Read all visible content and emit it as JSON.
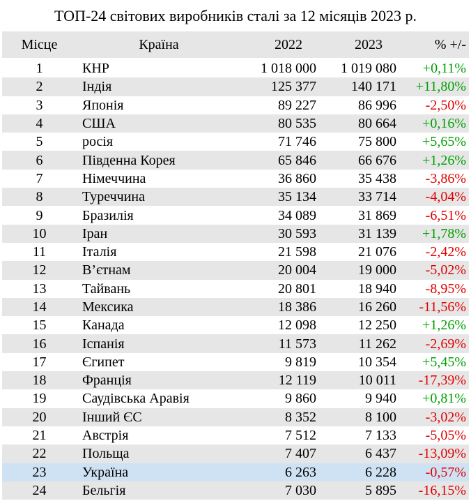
{
  "title": "ТОП-24 світових виробників сталі за 12 місяців 2023 р.",
  "headers": {
    "rank": "Місце",
    "country": "Країна",
    "y2022": "2022",
    "y2023": "2023",
    "change": "% +/-"
  },
  "colors": {
    "positive": "#00a000",
    "negative": "#e00000",
    "stripe": "#e6e6e6",
    "highlight": "#cfe2f3"
  },
  "rows": [
    {
      "rank": "1",
      "country": "КНР",
      "y2022": "1 018 000",
      "y2023": "1 019 080",
      "change": "+0,11%"
    },
    {
      "rank": "2",
      "country": "Індія",
      "y2022": "125 377",
      "y2023": "140 171",
      "change": "+11,80%"
    },
    {
      "rank": "3",
      "country": "Японія",
      "y2022": "89 227",
      "y2023": "86 996",
      "change": "-2,50%"
    },
    {
      "rank": "4",
      "country": "США",
      "y2022": "80 535",
      "y2023": "80 664",
      "change": "+0,16%"
    },
    {
      "rank": "5",
      "country": "росія",
      "y2022": "71 746",
      "y2023": "75 800",
      "change": "+5,65%"
    },
    {
      "rank": "6",
      "country": "Південна Корея",
      "y2022": "65 846",
      "y2023": "66 676",
      "change": "+1,26%"
    },
    {
      "rank": "7",
      "country": "Німеччина",
      "y2022": "36 860",
      "y2023": "35 438",
      "change": "-3,86%"
    },
    {
      "rank": "8",
      "country": "Туреччина",
      "y2022": "35 134",
      "y2023": "33 714",
      "change": "-4,04%"
    },
    {
      "rank": "9",
      "country": "Бразилія",
      "y2022": "34 089",
      "y2023": "31 869",
      "change": "-6,51%"
    },
    {
      "rank": "10",
      "country": "Іран",
      "y2022": "30 593",
      "y2023": "31 139",
      "change": "+1,78%"
    },
    {
      "rank": "11",
      "country": "Італія",
      "y2022": "21 598",
      "y2023": "21 076",
      "change": "-2,42%"
    },
    {
      "rank": "12",
      "country": "В’єтнам",
      "y2022": "20 004",
      "y2023": "19 000",
      "change": "-5,02%"
    },
    {
      "rank": "13",
      "country": "Тайвань",
      "y2022": "20 801",
      "y2023": "18 940",
      "change": "-8,95%"
    },
    {
      "rank": "14",
      "country": "Мексика",
      "y2022": "18 386",
      "y2023": "16 260",
      "change": "-11,56%"
    },
    {
      "rank": "15",
      "country": "Канада",
      "y2022": "12 098",
      "y2023": "12 250",
      "change": "+1,26%"
    },
    {
      "rank": "16",
      "country": "Іспанія",
      "y2022": "11 573",
      "y2023": "11 262",
      "change": "-2,69%"
    },
    {
      "rank": "17",
      "country": "Єгипет",
      "y2022": "9 819",
      "y2023": "10 354",
      "change": "+5,45%"
    },
    {
      "rank": "18",
      "country": "Франція",
      "y2022": "12 119",
      "y2023": "10 011",
      "change": "-17,39%"
    },
    {
      "rank": "19",
      "country": "Саудівська Аравія",
      "y2022": "9 860",
      "y2023": "9 940",
      "change": "+0,81%"
    },
    {
      "rank": "20",
      "country": "Інший ЄС",
      "y2022": "8 352",
      "y2023": "8 100",
      "change": "-3,02%"
    },
    {
      "rank": "21",
      "country": "Австрія",
      "y2022": "7 512",
      "y2023": "7 133",
      "change": "-5,05%"
    },
    {
      "rank": "22",
      "country": "Польща",
      "y2022": "7 407",
      "y2023": "6 437",
      "change": "-13,09%"
    },
    {
      "rank": "23",
      "country": "Україна",
      "y2022": "6 263",
      "y2023": "6 228",
      "change": "-0,57%",
      "highlight": true
    },
    {
      "rank": "24",
      "country": "Бельгія",
      "y2022": "7 030",
      "y2023": "5 895",
      "change": "-16,15%"
    }
  ]
}
